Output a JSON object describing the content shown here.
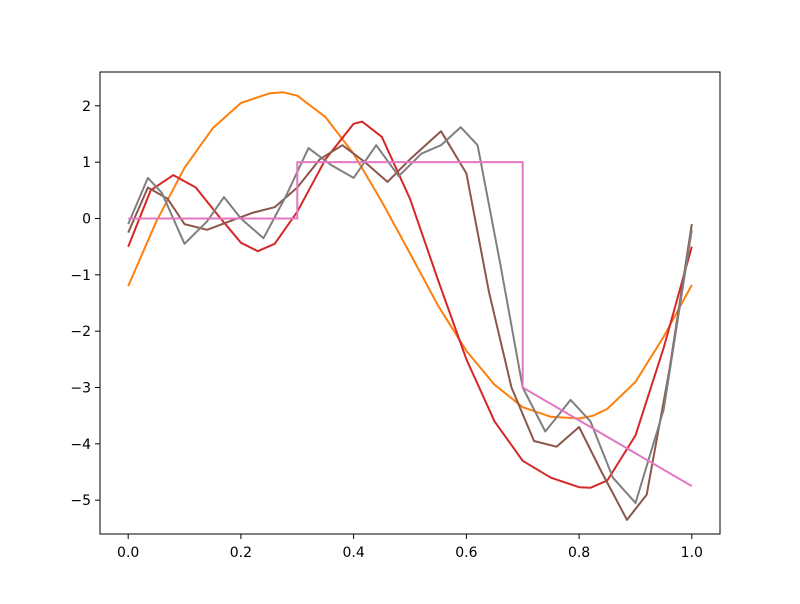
{
  "chart_data": {
    "type": "line",
    "title": "",
    "xlabel": "",
    "ylabel": "",
    "xlim": [
      -0.05,
      1.05
    ],
    "ylim": [
      -5.6,
      2.6
    ],
    "xticks": [
      0.0,
      0.2,
      0.4,
      0.6,
      0.8,
      1.0
    ],
    "xtick_labels": [
      "0.0",
      "0.2",
      "0.4",
      "0.6",
      "0.8",
      "1.0"
    ],
    "yticks": [
      2,
      1,
      0,
      -1,
      -2,
      -3,
      -4,
      -5
    ],
    "ytick_labels": [
      "2",
      "1",
      "0",
      "−1",
      "−2",
      "−3",
      "−4",
      "−5"
    ],
    "grid": false,
    "legend": false,
    "series": [
      {
        "color": "#ff7f0e",
        "x": [
          0.0,
          0.05,
          0.1,
          0.15,
          0.2,
          0.25,
          0.275,
          0.3,
          0.35,
          0.4,
          0.45,
          0.5,
          0.55,
          0.6,
          0.65,
          0.7,
          0.75,
          0.8,
          0.825,
          0.85,
          0.9,
          0.95,
          1.0
        ],
        "y": [
          -1.2,
          -0.05,
          0.9,
          1.6,
          2.05,
          2.22,
          2.24,
          2.18,
          1.8,
          1.15,
          0.3,
          -0.62,
          -1.55,
          -2.35,
          -2.95,
          -3.35,
          -3.52,
          -3.55,
          -3.5,
          -3.38,
          -2.9,
          -2.1,
          -1.18
        ]
      },
      {
        "color": "#d62728",
        "x": [
          0.0,
          0.04,
          0.08,
          0.12,
          0.16,
          0.2,
          0.23,
          0.26,
          0.3,
          0.35,
          0.4,
          0.415,
          0.45,
          0.5,
          0.55,
          0.6,
          0.65,
          0.7,
          0.75,
          0.8,
          0.82,
          0.85,
          0.9,
          0.95,
          1.0
        ],
        "y": [
          -0.5,
          0.5,
          0.77,
          0.55,
          0.05,
          -0.43,
          -0.58,
          -0.45,
          0.12,
          1.05,
          1.68,
          1.72,
          1.45,
          0.35,
          -1.1,
          -2.5,
          -3.6,
          -4.3,
          -4.6,
          -4.77,
          -4.78,
          -4.65,
          -3.85,
          -2.3,
          -0.5
        ]
      },
      {
        "color": "#8c564b",
        "x": [
          0.0,
          0.035,
          0.07,
          0.1,
          0.14,
          0.18,
          0.22,
          0.26,
          0.3,
          0.34,
          0.38,
          0.42,
          0.46,
          0.5,
          0.555,
          0.6,
          0.64,
          0.68,
          0.72,
          0.76,
          0.8,
          0.84,
          0.885,
          0.92,
          0.96,
          1.0
        ],
        "y": [
          -0.25,
          0.55,
          0.35,
          -0.1,
          -0.2,
          -0.05,
          0.1,
          0.2,
          0.55,
          1.05,
          1.3,
          1.0,
          0.65,
          1.05,
          1.55,
          0.8,
          -1.3,
          -3.0,
          -3.95,
          -4.05,
          -3.7,
          -4.5,
          -5.35,
          -4.9,
          -2.7,
          -0.1
        ]
      },
      {
        "color": "#7f7f7f",
        "x": [
          0.0,
          0.035,
          0.06,
          0.1,
          0.14,
          0.17,
          0.2,
          0.24,
          0.28,
          0.32,
          0.36,
          0.4,
          0.44,
          0.48,
          0.52,
          0.555,
          0.59,
          0.62,
          0.66,
          0.7,
          0.74,
          0.785,
          0.82,
          0.86,
          0.9,
          0.95,
          1.0
        ],
        "y": [
          -0.1,
          0.72,
          0.45,
          -0.45,
          -0.05,
          0.38,
          0.0,
          -0.35,
          0.4,
          1.25,
          0.95,
          0.72,
          1.3,
          0.75,
          1.15,
          1.3,
          1.62,
          1.3,
          -0.8,
          -3.0,
          -3.78,
          -3.22,
          -3.6,
          -4.6,
          -5.05,
          -3.4,
          -0.2
        ]
      },
      {
        "color": "#e377c2",
        "x": [
          0.0,
          0.3,
          0.3,
          0.7,
          0.7,
          1.0
        ],
        "y": [
          0.0,
          0.0,
          1.0,
          1.0,
          -3.0,
          -4.75
        ]
      }
    ]
  }
}
